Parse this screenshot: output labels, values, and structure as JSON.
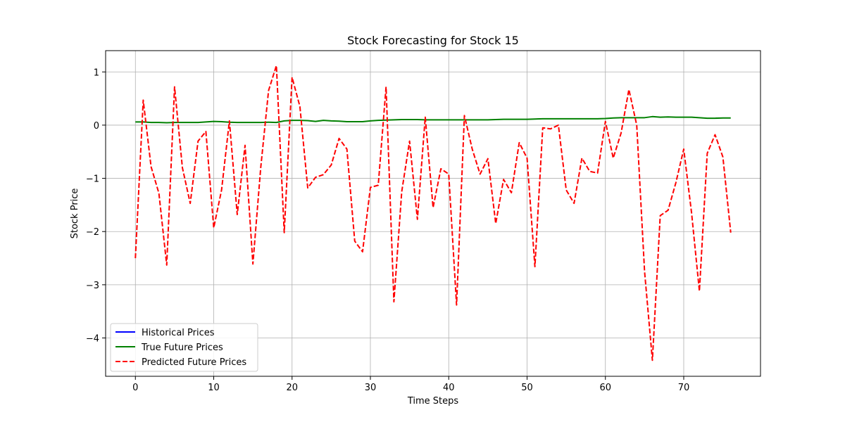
{
  "chart_data": {
    "type": "line",
    "title": "Stock Forecasting for Stock 15",
    "xlabel": "Time Steps",
    "ylabel": "Stock Price",
    "xlim": [
      -3.8,
      79.8
    ],
    "ylim": [
      -4.72,
      1.4
    ],
    "xticks": [
      0,
      10,
      20,
      30,
      40,
      50,
      60,
      70
    ],
    "yticks": [
      -4,
      -3,
      -2,
      -1,
      0,
      1
    ],
    "grid": true,
    "legend_position": "lower-left",
    "series": [
      {
        "name": "Historical Prices",
        "color": "#0000ff",
        "dash": "solid",
        "x": [],
        "y": []
      },
      {
        "name": "True Future Prices",
        "color": "#008000",
        "dash": "solid",
        "x": [
          0,
          1,
          2,
          3,
          4,
          5,
          6,
          7,
          8,
          9,
          10,
          11,
          12,
          13,
          14,
          15,
          16,
          17,
          18,
          19,
          20,
          21,
          22,
          23,
          24,
          25,
          26,
          27,
          28,
          29,
          30,
          31,
          32,
          33,
          34,
          35,
          36,
          37,
          38,
          39,
          40,
          41,
          42,
          43,
          44,
          45,
          46,
          47,
          48,
          49,
          50,
          51,
          52,
          53,
          54,
          55,
          56,
          57,
          58,
          59,
          60,
          61,
          62,
          63,
          64,
          65,
          66,
          67,
          68,
          69,
          70,
          71,
          72,
          73,
          74,
          75,
          76
        ],
        "y": [
          0.06,
          0.06,
          0.05,
          0.05,
          0.045,
          0.05,
          0.05,
          0.05,
          0.05,
          0.06,
          0.07,
          0.065,
          0.055,
          0.05,
          0.05,
          0.05,
          0.05,
          0.055,
          0.05,
          0.08,
          0.09,
          0.09,
          0.085,
          0.07,
          0.09,
          0.08,
          0.075,
          0.065,
          0.065,
          0.065,
          0.08,
          0.09,
          0.095,
          0.1,
          0.105,
          0.105,
          0.105,
          0.1,
          0.1,
          0.1,
          0.1,
          0.1,
          0.1,
          0.1,
          0.1,
          0.1,
          0.105,
          0.11,
          0.11,
          0.11,
          0.11,
          0.115,
          0.12,
          0.12,
          0.12,
          0.12,
          0.12,
          0.12,
          0.12,
          0.12,
          0.125,
          0.135,
          0.14,
          0.14,
          0.14,
          0.14,
          0.16,
          0.15,
          0.155,
          0.15,
          0.15,
          0.15,
          0.14,
          0.13,
          0.13,
          0.135,
          0.135
        ]
      },
      {
        "name": "Predicted Future Prices",
        "color": "#ff0000",
        "dash": "dashed",
        "x": [
          0,
          1,
          2,
          3,
          4,
          5,
          6,
          7,
          8,
          9,
          10,
          11,
          12,
          13,
          14,
          15,
          16,
          17,
          18,
          19,
          20,
          21,
          22,
          23,
          24,
          25,
          26,
          27,
          28,
          29,
          30,
          31,
          32,
          33,
          34,
          35,
          36,
          37,
          38,
          39,
          40,
          41,
          42,
          43,
          44,
          45,
          46,
          47,
          48,
          49,
          50,
          51,
          52,
          53,
          54,
          55,
          56,
          57,
          58,
          59,
          60,
          61,
          62,
          63,
          64,
          65,
          66,
          67,
          68,
          69,
          70,
          71,
          72,
          73,
          74,
          75,
          76
        ],
        "y": [
          -2.5,
          0.47,
          -0.78,
          -1.28,
          -2.63,
          0.72,
          -0.8,
          -1.47,
          -0.3,
          -0.12,
          -1.93,
          -1.22,
          0.08,
          -1.68,
          -0.38,
          -2.61,
          -0.8,
          0.65,
          1.12,
          -2.02,
          0.9,
          0.35,
          -1.18,
          -0.98,
          -0.93,
          -0.75,
          -0.25,
          -0.45,
          -2.18,
          -2.38,
          -1.17,
          -1.13,
          0.72,
          -3.32,
          -1.25,
          -0.3,
          -1.77,
          0.15,
          -1.55,
          -0.82,
          -0.92,
          -3.38,
          0.18,
          -0.45,
          -0.92,
          -0.63,
          -1.85,
          -1.02,
          -1.27,
          -0.33,
          -0.62,
          -2.66,
          -0.05,
          -0.07,
          0.0,
          -1.22,
          -1.47,
          -0.62,
          -0.87,
          -0.9,
          0.07,
          -0.62,
          -0.15,
          0.67,
          0.0,
          -2.75,
          -4.42,
          -1.7,
          -1.6,
          -1.08,
          -0.45,
          -1.65,
          -3.12,
          -0.53,
          -0.18,
          -0.6,
          -2.02
        ]
      }
    ]
  }
}
